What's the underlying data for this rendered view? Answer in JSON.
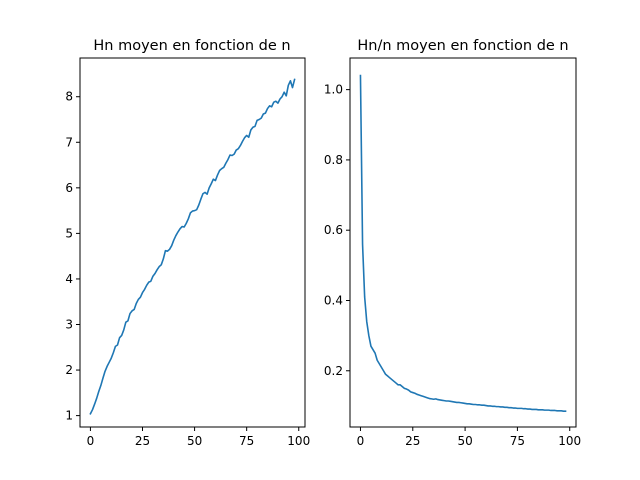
{
  "chart_data": [
    {
      "type": "line",
      "title": "Hn moyen en fonction de n",
      "xlabel": "",
      "ylabel": "",
      "xlim": [
        -5,
        103
      ],
      "ylim": [
        0.75,
        8.85
      ],
      "xticks": [
        0,
        25,
        50,
        75,
        100
      ],
      "yticks": [
        1,
        2,
        3,
        4,
        5,
        6,
        7,
        8
      ],
      "grid": false,
      "series": [
        {
          "color": "#1f77b4",
          "x": [
            0,
            1,
            2,
            3,
            4,
            5,
            6,
            7,
            8,
            9,
            10,
            11,
            12,
            13,
            14,
            15,
            16,
            17,
            18,
            19,
            20,
            21,
            22,
            23,
            24,
            25,
            26,
            27,
            28,
            29,
            30,
            31,
            32,
            33,
            34,
            35,
            36,
            37,
            38,
            39,
            40,
            41,
            42,
            43,
            44,
            45,
            46,
            47,
            48,
            49,
            50,
            51,
            52,
            53,
            54,
            55,
            56,
            57,
            58,
            59,
            60,
            61,
            62,
            63,
            64,
            65,
            66,
            67,
            68,
            69,
            70,
            71,
            72,
            73,
            74,
            75,
            76,
            77,
            78,
            79,
            80,
            81,
            82,
            83,
            84,
            85,
            86,
            87,
            88,
            89,
            90,
            91,
            92,
            93,
            94,
            95,
            96,
            97,
            98
          ],
          "y": [
            1.04,
            1.13,
            1.25,
            1.38,
            1.53,
            1.66,
            1.82,
            1.97,
            2.08,
            2.17,
            2.26,
            2.38,
            2.52,
            2.55,
            2.71,
            2.76,
            2.88,
            3.05,
            3.08,
            3.24,
            3.3,
            3.33,
            3.46,
            3.55,
            3.6,
            3.7,
            3.77,
            3.86,
            3.93,
            3.95,
            4.06,
            4.12,
            4.2,
            4.27,
            4.31,
            4.44,
            4.62,
            4.61,
            4.65,
            4.73,
            4.85,
            4.95,
            5.03,
            5.1,
            5.15,
            5.14,
            5.22,
            5.32,
            5.45,
            5.49,
            5.5,
            5.52,
            5.62,
            5.75,
            5.87,
            5.9,
            5.86,
            6.0,
            6.09,
            6.19,
            6.16,
            6.28,
            6.38,
            6.42,
            6.45,
            6.54,
            6.62,
            6.72,
            6.71,
            6.74,
            6.83,
            6.86,
            6.93,
            7.02,
            7.1,
            7.15,
            7.11,
            7.27,
            7.33,
            7.35,
            7.48,
            7.5,
            7.53,
            7.62,
            7.64,
            7.74,
            7.8,
            7.78,
            7.88,
            7.9,
            7.86,
            7.95,
            8.0,
            8.1,
            8.02,
            8.25,
            8.35,
            8.2,
            8.38
          ]
        }
      ]
    },
    {
      "type": "line",
      "title": "Hn/n moyen en fonction de n",
      "xlabel": "",
      "ylabel": "",
      "xlim": [
        -5,
        103
      ],
      "ylim": [
        0.04,
        1.09
      ],
      "xticks": [
        0,
        25,
        50,
        75,
        100
      ],
      "yticks": [
        0.2,
        0.4,
        0.6,
        0.8,
        1.0
      ],
      "ytick_labels": [
        "0.2",
        "0.4",
        "0.6",
        "0.8",
        "1.0"
      ],
      "grid": false,
      "series": [
        {
          "color": "#1f77b4",
          "x": [
            0,
            1,
            2,
            3,
            4,
            5,
            6,
            7,
            8,
            9,
            10,
            11,
            12,
            13,
            14,
            15,
            16,
            17,
            18,
            19,
            20,
            21,
            22,
            23,
            24,
            25,
            26,
            27,
            28,
            29,
            30,
            31,
            32,
            33,
            34,
            35,
            36,
            37,
            38,
            39,
            40,
            41,
            42,
            43,
            44,
            45,
            46,
            47,
            48,
            49,
            50,
            51,
            52,
            53,
            54,
            55,
            56,
            57,
            58,
            59,
            60,
            61,
            62,
            63,
            64,
            65,
            66,
            67,
            68,
            69,
            70,
            71,
            72,
            73,
            74,
            75,
            76,
            77,
            78,
            79,
            80,
            81,
            82,
            83,
            84,
            85,
            86,
            87,
            88,
            89,
            90,
            91,
            92,
            93,
            94,
            95,
            96,
            97,
            98
          ],
          "y": [
            1.04,
            0.56,
            0.41,
            0.34,
            0.3,
            0.27,
            0.26,
            0.25,
            0.23,
            0.22,
            0.21,
            0.2,
            0.19,
            0.185,
            0.18,
            0.175,
            0.17,
            0.165,
            0.16,
            0.16,
            0.155,
            0.15,
            0.148,
            0.145,
            0.14,
            0.138,
            0.136,
            0.133,
            0.131,
            0.129,
            0.127,
            0.125,
            0.123,
            0.121,
            0.12,
            0.119,
            0.12,
            0.118,
            0.117,
            0.116,
            0.115,
            0.114,
            0.114,
            0.113,
            0.112,
            0.111,
            0.11,
            0.11,
            0.109,
            0.108,
            0.107,
            0.106,
            0.106,
            0.105,
            0.104,
            0.104,
            0.103,
            0.103,
            0.102,
            0.102,
            0.101,
            0.1,
            0.1,
            0.099,
            0.099,
            0.098,
            0.098,
            0.097,
            0.097,
            0.096,
            0.096,
            0.095,
            0.095,
            0.094,
            0.094,
            0.093,
            0.093,
            0.093,
            0.092,
            0.092,
            0.091,
            0.091,
            0.09,
            0.09,
            0.09,
            0.089,
            0.089,
            0.089,
            0.088,
            0.088,
            0.088,
            0.087,
            0.087,
            0.087,
            0.086,
            0.086,
            0.086,
            0.085,
            0.085
          ]
        }
      ]
    }
  ]
}
